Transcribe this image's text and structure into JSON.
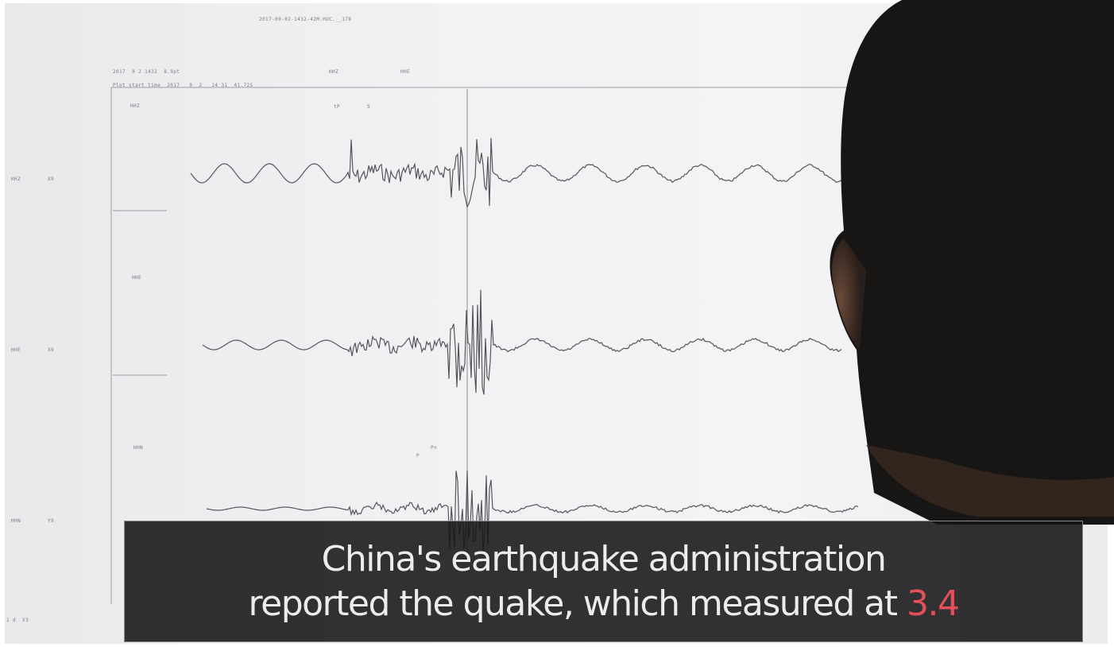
{
  "screen_text": {
    "top_title": "2017-09-02-1432-42M.HUC.__178",
    "header_line1": "2017  9 2 1432  8.9pt",
    "header_col_a": "HHZ",
    "header_col_b": "HHE",
    "plot_start": "Plot start time  2017   9  2   14 31  41.72S",
    "station_1": "HHZ",
    "station_2": "HHE",
    "station_3": "HHN",
    "side_1a": "HHZ",
    "side_1b": "X9",
    "side_2a": "HHE",
    "side_2b": "X9",
    "side_3a": "HHN",
    "side_3b": "Y9",
    "phase_p": "tP",
    "phase_s": "S",
    "phase_p3": "P",
    "phase_s3": "Pn",
    "bottom_left": "1 d  X3"
  },
  "caption": {
    "line1": "China's earthquake administration",
    "line2_text": "reported the quake, which measured at",
    "line2_value": "3.4",
    "accent_color": "#e2505a"
  }
}
